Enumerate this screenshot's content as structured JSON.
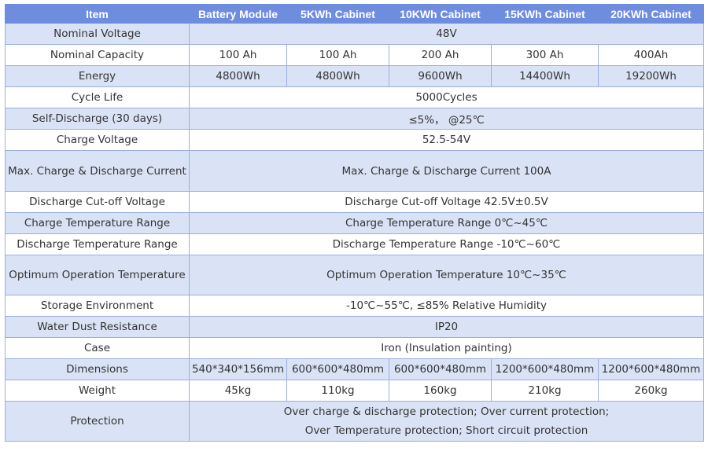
{
  "header": {
    "item": "Item",
    "battery_module": "Battery Module",
    "cab5": "5KWh Cabinet",
    "cab10": "10KWh Cabinet",
    "cab15": "15KWh Cabinet",
    "cab20": "20KWh Cabinet"
  },
  "rows": {
    "nominal_voltage": {
      "label": "Nominal Voltage",
      "value": "48V"
    },
    "nominal_capacity": {
      "label": "Nominal Capacity",
      "values": [
        "100 Ah",
        "100 Ah",
        "200 Ah",
        "300 Ah",
        "400Ah"
      ]
    },
    "energy": {
      "label": "Energy",
      "values": [
        "4800Wh",
        "4800Wh",
        "9600Wh",
        "14400Wh",
        "19200Wh"
      ]
    },
    "cycle_life": {
      "label": "Cycle Life",
      "value": "5000Cycles"
    },
    "self_discharge": {
      "label": "Self-Discharge (30 days)",
      "value": "≤5%， @25℃"
    },
    "charge_voltage": {
      "label": "Charge Voltage",
      "value": "52.5-54V"
    },
    "max_current": {
      "label": "Max. Charge & Discharge Current",
      "value": "Max. Charge & Discharge Current 100A"
    },
    "cutoff_voltage": {
      "label": "Discharge Cut-off Voltage",
      "value": "Discharge Cut-off Voltage 42.5V±0.5V"
    },
    "charge_temp": {
      "label": "Charge Temperature Range",
      "value": "Charge Temperature Range 0℃~45℃"
    },
    "discharge_temp": {
      "label": "Discharge Temperature Range",
      "value": "Discharge Temperature Range -10℃~60℃"
    },
    "optimum_temp": {
      "label": "Optimum Operation Temperature",
      "value": "Optimum Operation Temperature 10℃~35℃"
    },
    "storage": {
      "label": "Storage Environment",
      "value": "-10℃~55℃, ≤85% Relative Humidity"
    },
    "water_dust": {
      "label": "Water Dust Resistance",
      "value": "IP20"
    },
    "case": {
      "label": "Case",
      "value": "Iron (Insulation painting)"
    },
    "dimensions": {
      "label": "Dimensions",
      "values": [
        "540*340*156mm",
        "600*600*480mm",
        "600*600*480mm",
        "1200*600*480mm",
        "1200*600*480mm"
      ]
    },
    "weight": {
      "label": "Weight",
      "values": [
        "45kg",
        "110kg",
        "160kg",
        "210kg",
        "260kg"
      ]
    },
    "protection": {
      "label": "Protection",
      "line1": "Over charge & discharge protection; Over current protection;",
      "line2": "Over Temperature protection; Short circuit protection"
    }
  }
}
